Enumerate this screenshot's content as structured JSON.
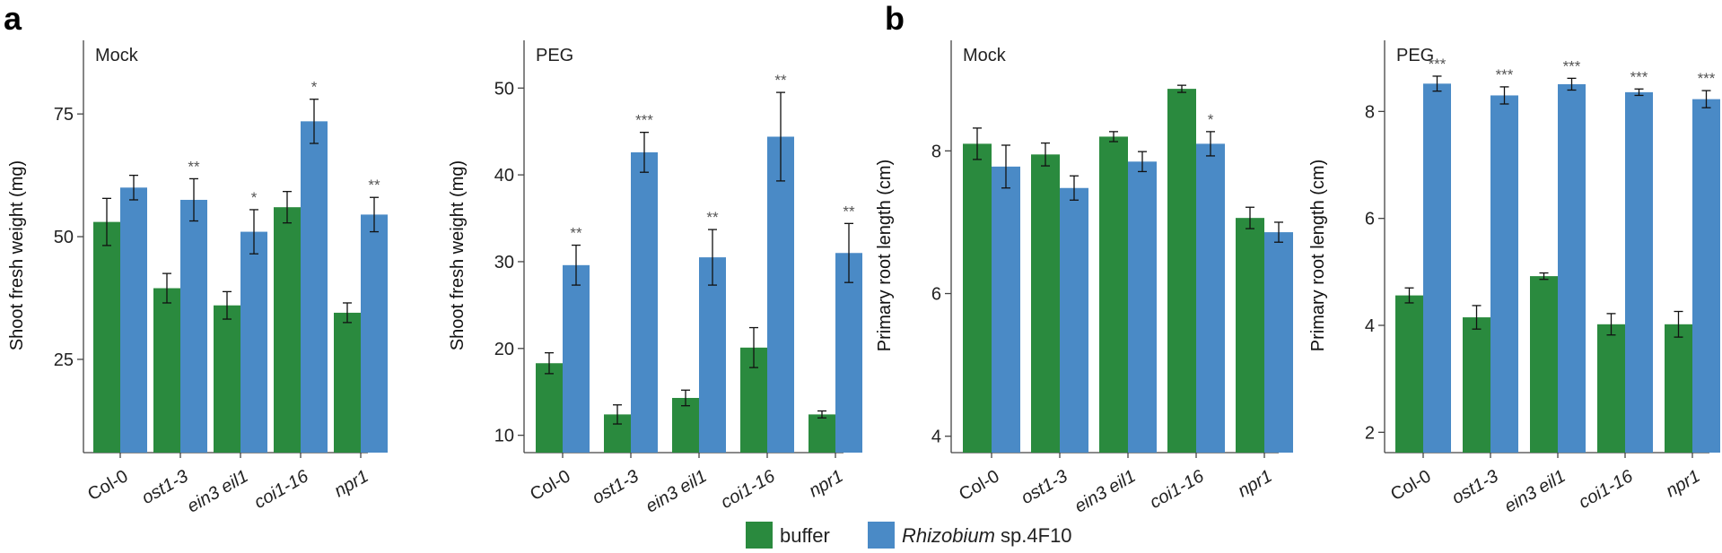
{
  "colors": {
    "buffer": "#2a8a3e",
    "rhizobium": "#4a8ac6"
  },
  "panel_labels": [
    "a",
    "b"
  ],
  "legend": {
    "buffer": "buffer",
    "rhizobium_genus": "Rhizobium",
    "rhizobium_strain": " sp.4F10"
  },
  "chart_data": [
    {
      "type": "bar",
      "panel": "a",
      "subtitle": "Mock",
      "ylabel": "Shoot fresh weight (mg)",
      "ylim": [
        6,
        90
      ],
      "yticks": [
        25,
        50,
        75
      ],
      "categories": [
        "Col-0",
        "ost1-3",
        "ein3 eil1",
        "coi1-16",
        "npr1"
      ],
      "series": [
        {
          "name": "buffer",
          "values": [
            53,
            39.5,
            36,
            56,
            34.5
          ],
          "errors": [
            4.8,
            3,
            2.8,
            3.2,
            2
          ]
        },
        {
          "name": "Rhizobium sp.4F10",
          "values": [
            60,
            57.5,
            51,
            73.5,
            54.5
          ],
          "errors": [
            2.5,
            4.3,
            4.5,
            4.5,
            3.5
          ]
        }
      ],
      "significance": [
        "",
        "**",
        "*",
        "*",
        "**"
      ]
    },
    {
      "type": "bar",
      "panel": "a",
      "subtitle": "PEG",
      "ylabel": "Shoot fresh weight (mg)",
      "ylim": [
        8,
        55.5
      ],
      "yticks": [
        10,
        20,
        30,
        40,
        50
      ],
      "categories": [
        "Col-0",
        "ost1-3",
        "ein3 eil1",
        "coi1-16",
        "npr1"
      ],
      "series": [
        {
          "name": "buffer",
          "values": [
            18.3,
            12.4,
            14.3,
            20.1,
            12.4
          ],
          "errors": [
            1.2,
            1.1,
            0.9,
            2.3,
            0.4
          ]
        },
        {
          "name": "Rhizobium sp.4F10",
          "values": [
            29.6,
            42.6,
            30.5,
            44.4,
            31
          ],
          "errors": [
            2.3,
            2.3,
            3.2,
            5.1,
            3.4
          ]
        }
      ],
      "significance": [
        "**",
        "***",
        "**",
        "**",
        "**"
      ]
    },
    {
      "type": "bar",
      "panel": "b",
      "subtitle": "Mock",
      "ylabel": "Primary root length (cm)",
      "ylim": [
        3.77,
        9.55
      ],
      "yticks": [
        4,
        6,
        8
      ],
      "categories": [
        "Col-0",
        "ost1-3",
        "ein3 eil1",
        "coi1-16",
        "npr1"
      ],
      "series": [
        {
          "name": "buffer",
          "values": [
            8.1,
            7.95,
            8.2,
            8.87,
            7.06
          ],
          "errors": [
            0.22,
            0.16,
            0.07,
            0.05,
            0.15
          ]
        },
        {
          "name": "Rhizobium sp.4F10",
          "values": [
            7.78,
            7.48,
            7.85,
            8.1,
            6.86
          ],
          "errors": [
            0.3,
            0.17,
            0.14,
            0.17,
            0.14
          ]
        }
      ],
      "significance": [
        "",
        "",
        "",
        "*",
        ""
      ]
    },
    {
      "type": "bar",
      "panel": "b",
      "subtitle": "PEG",
      "ylabel": "Primary root length (cm)",
      "ylim": [
        1.62,
        9.33
      ],
      "yticks": [
        2,
        4,
        6,
        8
      ],
      "categories": [
        "Col-0",
        "ost1-3",
        "ein3 eil1",
        "coi1-16",
        "npr1"
      ],
      "series": [
        {
          "name": "buffer",
          "values": [
            4.56,
            4.15,
            4.92,
            4.02,
            4.02
          ],
          "errors": [
            0.14,
            0.22,
            0.06,
            0.2,
            0.24
          ]
        },
        {
          "name": "Rhizobium sp.4F10",
          "values": [
            8.52,
            8.3,
            8.51,
            8.36,
            8.23
          ],
          "errors": [
            0.14,
            0.16,
            0.11,
            0.06,
            0.16
          ]
        }
      ],
      "significance": [
        "***",
        "***",
        "***",
        "***",
        "***"
      ]
    }
  ]
}
